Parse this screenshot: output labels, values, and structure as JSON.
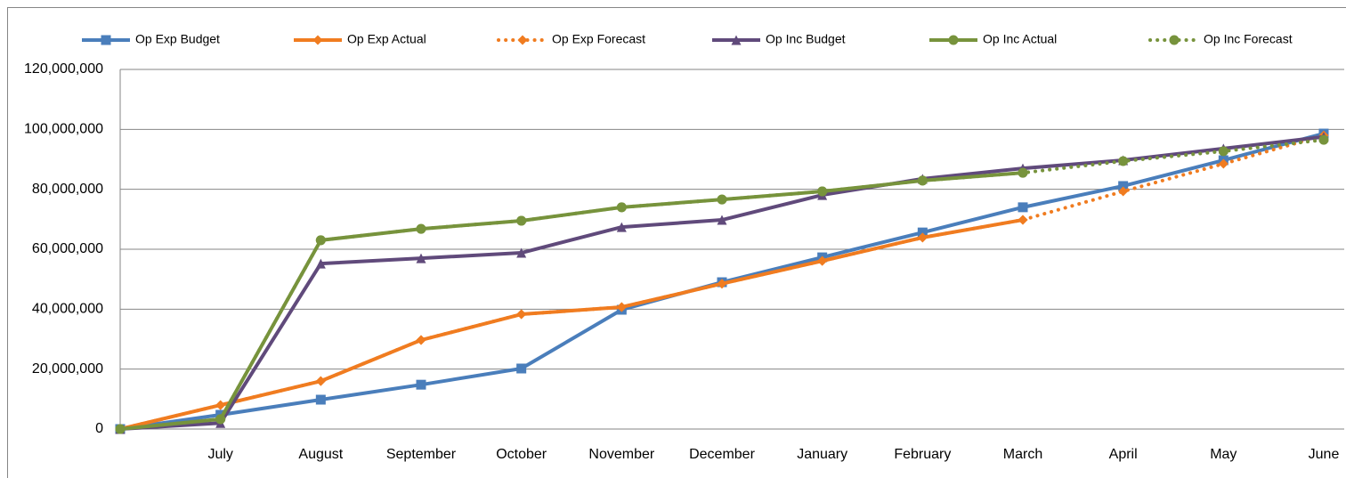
{
  "chart_data": {
    "type": "line",
    "categories": [
      null,
      "July",
      "August",
      "September",
      "October",
      "November",
      "December",
      "January",
      "February",
      "March",
      "April",
      "May",
      "June"
    ],
    "series": [
      {
        "name": "Op Exp Budget",
        "color": "#4a7ebb",
        "marker": "square",
        "dashed": false,
        "values": [
          0,
          4750000,
          9800000,
          14800000,
          20200000,
          39800000,
          49000000,
          57300000,
          65600000,
          74000000,
          81100000,
          89700000,
          98600000
        ]
      },
      {
        "name": "Op Exp Actual",
        "color": "#f07c20",
        "marker": "diamond",
        "dashed": false,
        "values": [
          0,
          8000000,
          16000000,
          29700000,
          38300000,
          40700000,
          48500000,
          56100000,
          63900000,
          69800000,
          null,
          null,
          null
        ]
      },
      {
        "name": "Op Exp Forecast",
        "color": "#f07c20",
        "marker": "diamond",
        "dashed": true,
        "values": [
          0,
          8000000,
          16000000,
          29700000,
          38300000,
          40700000,
          48500000,
          56100000,
          63900000,
          69800000,
          79300000,
          88500000,
          98000000
        ]
      },
      {
        "name": "Op Inc Budget",
        "color": "#604a7b",
        "marker": "triangle",
        "dashed": false,
        "values": [
          0,
          2000000,
          55200000,
          57000000,
          58800000,
          67400000,
          69800000,
          78100000,
          83500000,
          87000000,
          89700000,
          93600000,
          97500000
        ]
      },
      {
        "name": "Op Inc Actual",
        "color": "#77933c",
        "marker": "circle",
        "dashed": false,
        "values": [
          0,
          3300000,
          63000000,
          66800000,
          69500000,
          74000000,
          76600000,
          79300000,
          82900000,
          85500000,
          null,
          null,
          null
        ]
      },
      {
        "name": "Op Inc Forecast",
        "color": "#77933c",
        "marker": "circle",
        "dashed": true,
        "values": [
          0,
          3300000,
          63000000,
          66800000,
          69500000,
          74000000,
          76600000,
          79300000,
          82900000,
          85500000,
          89400000,
          92700000,
          96500000
        ]
      }
    ],
    "ylim": [
      0,
      120000000
    ],
    "yticks": [
      0,
      {
        "value": 20000000,
        "label": "20,000,000"
      },
      {
        "value": 40000000,
        "label": "40,000,000"
      },
      {
        "value": 60000000,
        "label": "60,000,000"
      },
      {
        "value": 80000000,
        "label": "80,000,000"
      },
      {
        "value": 100000000,
        "label": "100,000,000"
      },
      {
        "value": 120000000,
        "label": "120,000,000"
      }
    ],
    "grid": true,
    "legend": "top"
  }
}
